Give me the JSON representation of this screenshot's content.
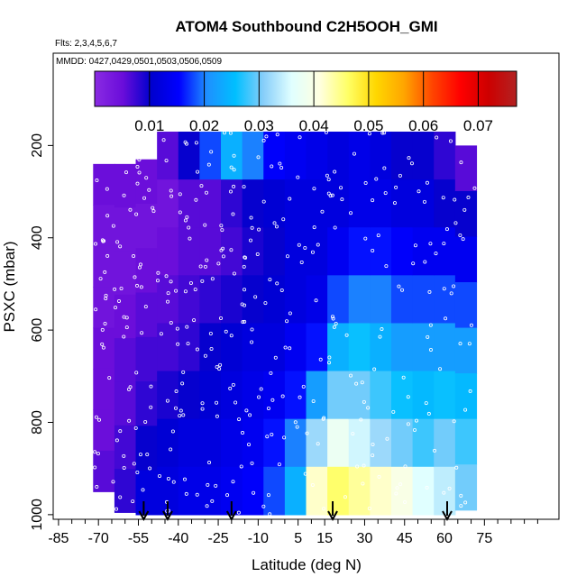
{
  "chart_data": {
    "type": "heatmap",
    "title": "ATOM4 Southbound C2H5OOH_GMI",
    "subtitle_flights": "Flts: 2,3,4,5,6,7",
    "subtitle_dates": "MMDD: 0427,0429,0501,0503,0506,0509",
    "xlabel": "Latitude (deg N)",
    "ylabel": "PSXC (mbar)",
    "xlim": [
      -87,
      103
    ],
    "ylim": [
      1010,
      0
    ],
    "x_ticks": [
      -85,
      -70,
      -55,
      -40,
      -25,
      -10,
      5,
      15,
      30,
      45,
      60,
      75
    ],
    "x_tick_labels": [
      "-85",
      "-70",
      "-55",
      "-40",
      "-25",
      "-10",
      "5",
      "15",
      "30",
      "45",
      "60",
      "75"
    ],
    "y_ticks": [
      200,
      400,
      600,
      800,
      1000
    ],
    "y_tick_labels": [
      "200",
      "400",
      "600",
      "800",
      "1000"
    ],
    "colorbar": {
      "min": 0.0,
      "max": 0.077,
      "ticks": [
        0.01,
        0.02,
        0.03,
        0.04,
        0.05,
        0.06,
        0.07
      ],
      "tick_labels": [
        "0.01",
        "0.02",
        "0.03",
        "0.04",
        "0.05",
        "0.06",
        "0.07"
      ],
      "colors": [
        "#8a2be2",
        "#6a0dda",
        "#0000cd",
        "#0000ff",
        "#1e90ff",
        "#00bfff",
        "#87cefa",
        "#e0ffff",
        "#ffffe0",
        "#ffff66",
        "#ffd700",
        "#ffa500",
        "#ff4500",
        "#ff0000",
        "#cd0000",
        "#b22222"
      ]
    },
    "profile_arrows_lat": [
      -53,
      -44,
      -20,
      18,
      61
    ],
    "columns": [
      {
        "lat": -68,
        "top": 240,
        "bottom": 950,
        "vals": [
          0.005,
          0.004,
          0.004,
          0.004,
          0.005,
          0.005,
          0.005,
          0.006
        ]
      },
      {
        "lat": -60,
        "top": 240,
        "bottom": 995,
        "vals": [
          0.005,
          0.004,
          0.004,
          0.005,
          0.006,
          0.006,
          0.007,
          0.008
        ]
      },
      {
        "lat": -52,
        "top": 230,
        "bottom": 1000,
        "vals": [
          0.005,
          0.004,
          0.005,
          0.006,
          0.007,
          0.008,
          0.01,
          0.012
        ]
      },
      {
        "lat": -44,
        "top": 170,
        "bottom": 1000,
        "vals": [
          0.006,
          0.004,
          0.005,
          0.006,
          0.007,
          0.009,
          0.011,
          0.012
        ]
      },
      {
        "lat": -36,
        "top": 170,
        "bottom": 1000,
        "vals": [
          0.01,
          0.006,
          0.006,
          0.007,
          0.008,
          0.01,
          0.012,
          0.013
        ]
      },
      {
        "lat": -28,
        "top": 170,
        "bottom": 1000,
        "vals": [
          0.018,
          0.006,
          0.006,
          0.008,
          0.01,
          0.011,
          0.012,
          0.013
        ]
      },
      {
        "lat": -20,
        "top": 170,
        "bottom": 1000,
        "vals": [
          0.024,
          0.008,
          0.007,
          0.009,
          0.011,
          0.012,
          0.013,
          0.014
        ]
      },
      {
        "lat": -12,
        "top": 170,
        "bottom": 1000,
        "vals": [
          0.02,
          0.01,
          0.009,
          0.01,
          0.012,
          0.013,
          0.014,
          0.015
        ]
      },
      {
        "lat": -4,
        "top": 170,
        "bottom": 1000,
        "vals": [
          0.015,
          0.011,
          0.01,
          0.011,
          0.012,
          0.014,
          0.016,
          0.018
        ]
      },
      {
        "lat": 4,
        "top": 170,
        "bottom": 1000,
        "vals": [
          0.014,
          0.012,
          0.012,
          0.012,
          0.014,
          0.016,
          0.02,
          0.024
        ]
      },
      {
        "lat": 12,
        "top": 170,
        "bottom": 1000,
        "vals": [
          0.013,
          0.012,
          0.012,
          0.013,
          0.016,
          0.022,
          0.032,
          0.042
        ]
      },
      {
        "lat": 20,
        "top": 170,
        "bottom": 1000,
        "vals": [
          0.012,
          0.012,
          0.014,
          0.018,
          0.024,
          0.03,
          0.038,
          0.046
        ]
      },
      {
        "lat": 28,
        "top": 170,
        "bottom": 1000,
        "vals": [
          0.013,
          0.013,
          0.016,
          0.02,
          0.026,
          0.03,
          0.035,
          0.044
        ]
      },
      {
        "lat": 36,
        "top": 170,
        "bottom": 1000,
        "vals": [
          0.012,
          0.013,
          0.016,
          0.02,
          0.024,
          0.028,
          0.032,
          0.042
        ]
      },
      {
        "lat": 44,
        "top": 170,
        "bottom": 1000,
        "vals": [
          0.01,
          0.012,
          0.015,
          0.018,
          0.022,
          0.026,
          0.03,
          0.04
        ]
      },
      {
        "lat": 52,
        "top": 170,
        "bottom": 1000,
        "vals": [
          0.01,
          0.012,
          0.014,
          0.018,
          0.022,
          0.025,
          0.028,
          0.036
        ]
      },
      {
        "lat": 60,
        "top": 170,
        "bottom": 1000,
        "vals": [
          0.008,
          0.01,
          0.014,
          0.018,
          0.022,
          0.026,
          0.03,
          0.034
        ]
      },
      {
        "lat": 68,
        "top": 200,
        "bottom": 990,
        "vals": [
          0.006,
          0.01,
          0.014,
          0.018,
          0.022,
          0.025,
          0.028,
          0.03
        ]
      }
    ]
  }
}
